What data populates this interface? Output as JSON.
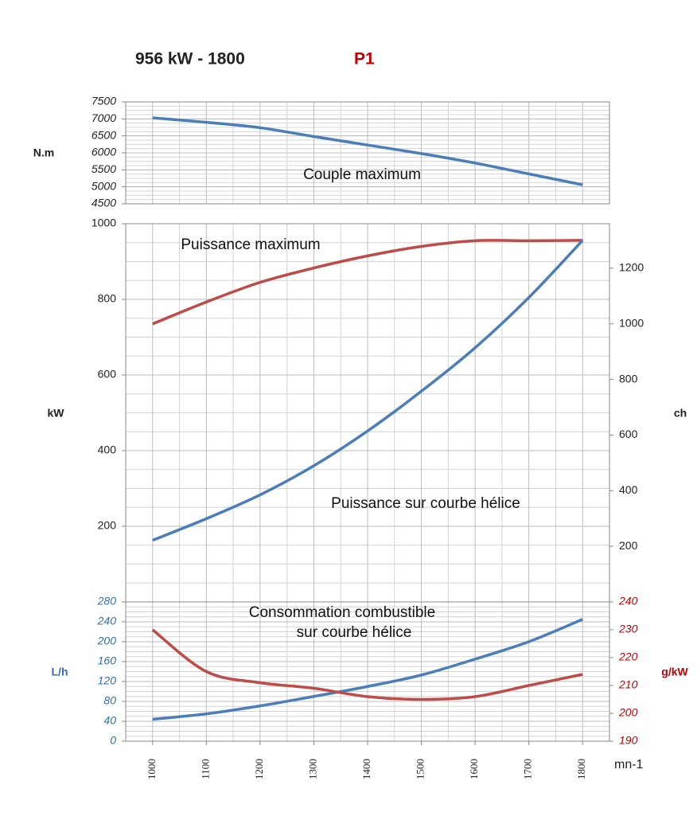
{
  "title": "956 kW - 1800",
  "subtitle": "P1",
  "chart_data": [
    {
      "type": "line",
      "ylabel": "N.m",
      "annotations": [
        "Couple maximum"
      ],
      "x": [
        1000,
        1100,
        1200,
        1300,
        1400,
        1500,
        1600,
        1700,
        1800
      ],
      "xlim": [
        950,
        1850
      ],
      "ylim": [
        4500,
        7500
      ],
      "yticks": [
        4500,
        5000,
        5500,
        6000,
        6500,
        7000,
        7500
      ],
      "grid": true,
      "series": [
        {
          "name": "Couple maximum",
          "color": "#4a7ebb",
          "values": [
            7030,
            6900,
            6740,
            6480,
            6230,
            5980,
            5700,
            5380,
            5060
          ]
        }
      ]
    },
    {
      "type": "line",
      "ylabel": "kW",
      "y2label": "ch",
      "annotations": [
        "Puissance maximum",
        "Puissance sur courbe hélice"
      ],
      "x": [
        1000,
        1100,
        1200,
        1300,
        1400,
        1500,
        1600,
        1700,
        1800
      ],
      "xlim": [
        950,
        1850
      ],
      "ylim": [
        0,
        1000
      ],
      "yticks": [
        200,
        400,
        600,
        800,
        1000
      ],
      "y2lim": [
        0,
        1360
      ],
      "y2ticks": [
        200,
        400,
        600,
        800,
        1000,
        1200
      ],
      "grid": true,
      "series": [
        {
          "name": "Puissance maximum",
          "color": "#be4b48",
          "values": [
            735,
            793,
            845,
            883,
            915,
            940,
            955,
            955,
            956
          ]
        },
        {
          "name": "Puissance sur courbe hélice",
          "color": "#4a7ebb",
          "values": [
            163,
            220,
            283,
            360,
            452,
            557,
            672,
            805,
            956
          ]
        }
      ]
    },
    {
      "type": "line",
      "ylabel": "L/h",
      "y2label": "g/kW",
      "xlabel": "mn-1",
      "annotations": [
        "Consommation combustible",
        "sur courbe hélice"
      ],
      "x": [
        1000,
        1100,
        1200,
        1300,
        1400,
        1500,
        1600,
        1700,
        1800
      ],
      "xlim": [
        950,
        1850
      ],
      "xticks": [
        1000,
        1100,
        1200,
        1300,
        1400,
        1500,
        1600,
        1700,
        1800
      ],
      "ylim": [
        0,
        280
      ],
      "yticks": [
        0,
        40,
        80,
        120,
        160,
        200,
        240,
        280
      ],
      "y2lim": [
        190,
        240
      ],
      "y2ticks": [
        190,
        200,
        210,
        220,
        230,
        240
      ],
      "grid": true,
      "ytick_color": "#2f6eb5",
      "y2tick_color": "#c00000",
      "series": [
        {
          "name": "Consommation L/h",
          "color": "#4a7ebb",
          "values": [
            44,
            55,
            71,
            90,
            110,
            133,
            165,
            200,
            245
          ]
        },
        {
          "name": "Consommation g/kWh",
          "color": "#be4b48",
          "axis": "y2",
          "values": [
            230,
            215,
            211,
            209,
            206,
            205,
            206,
            210,
            214
          ]
        }
      ]
    }
  ]
}
